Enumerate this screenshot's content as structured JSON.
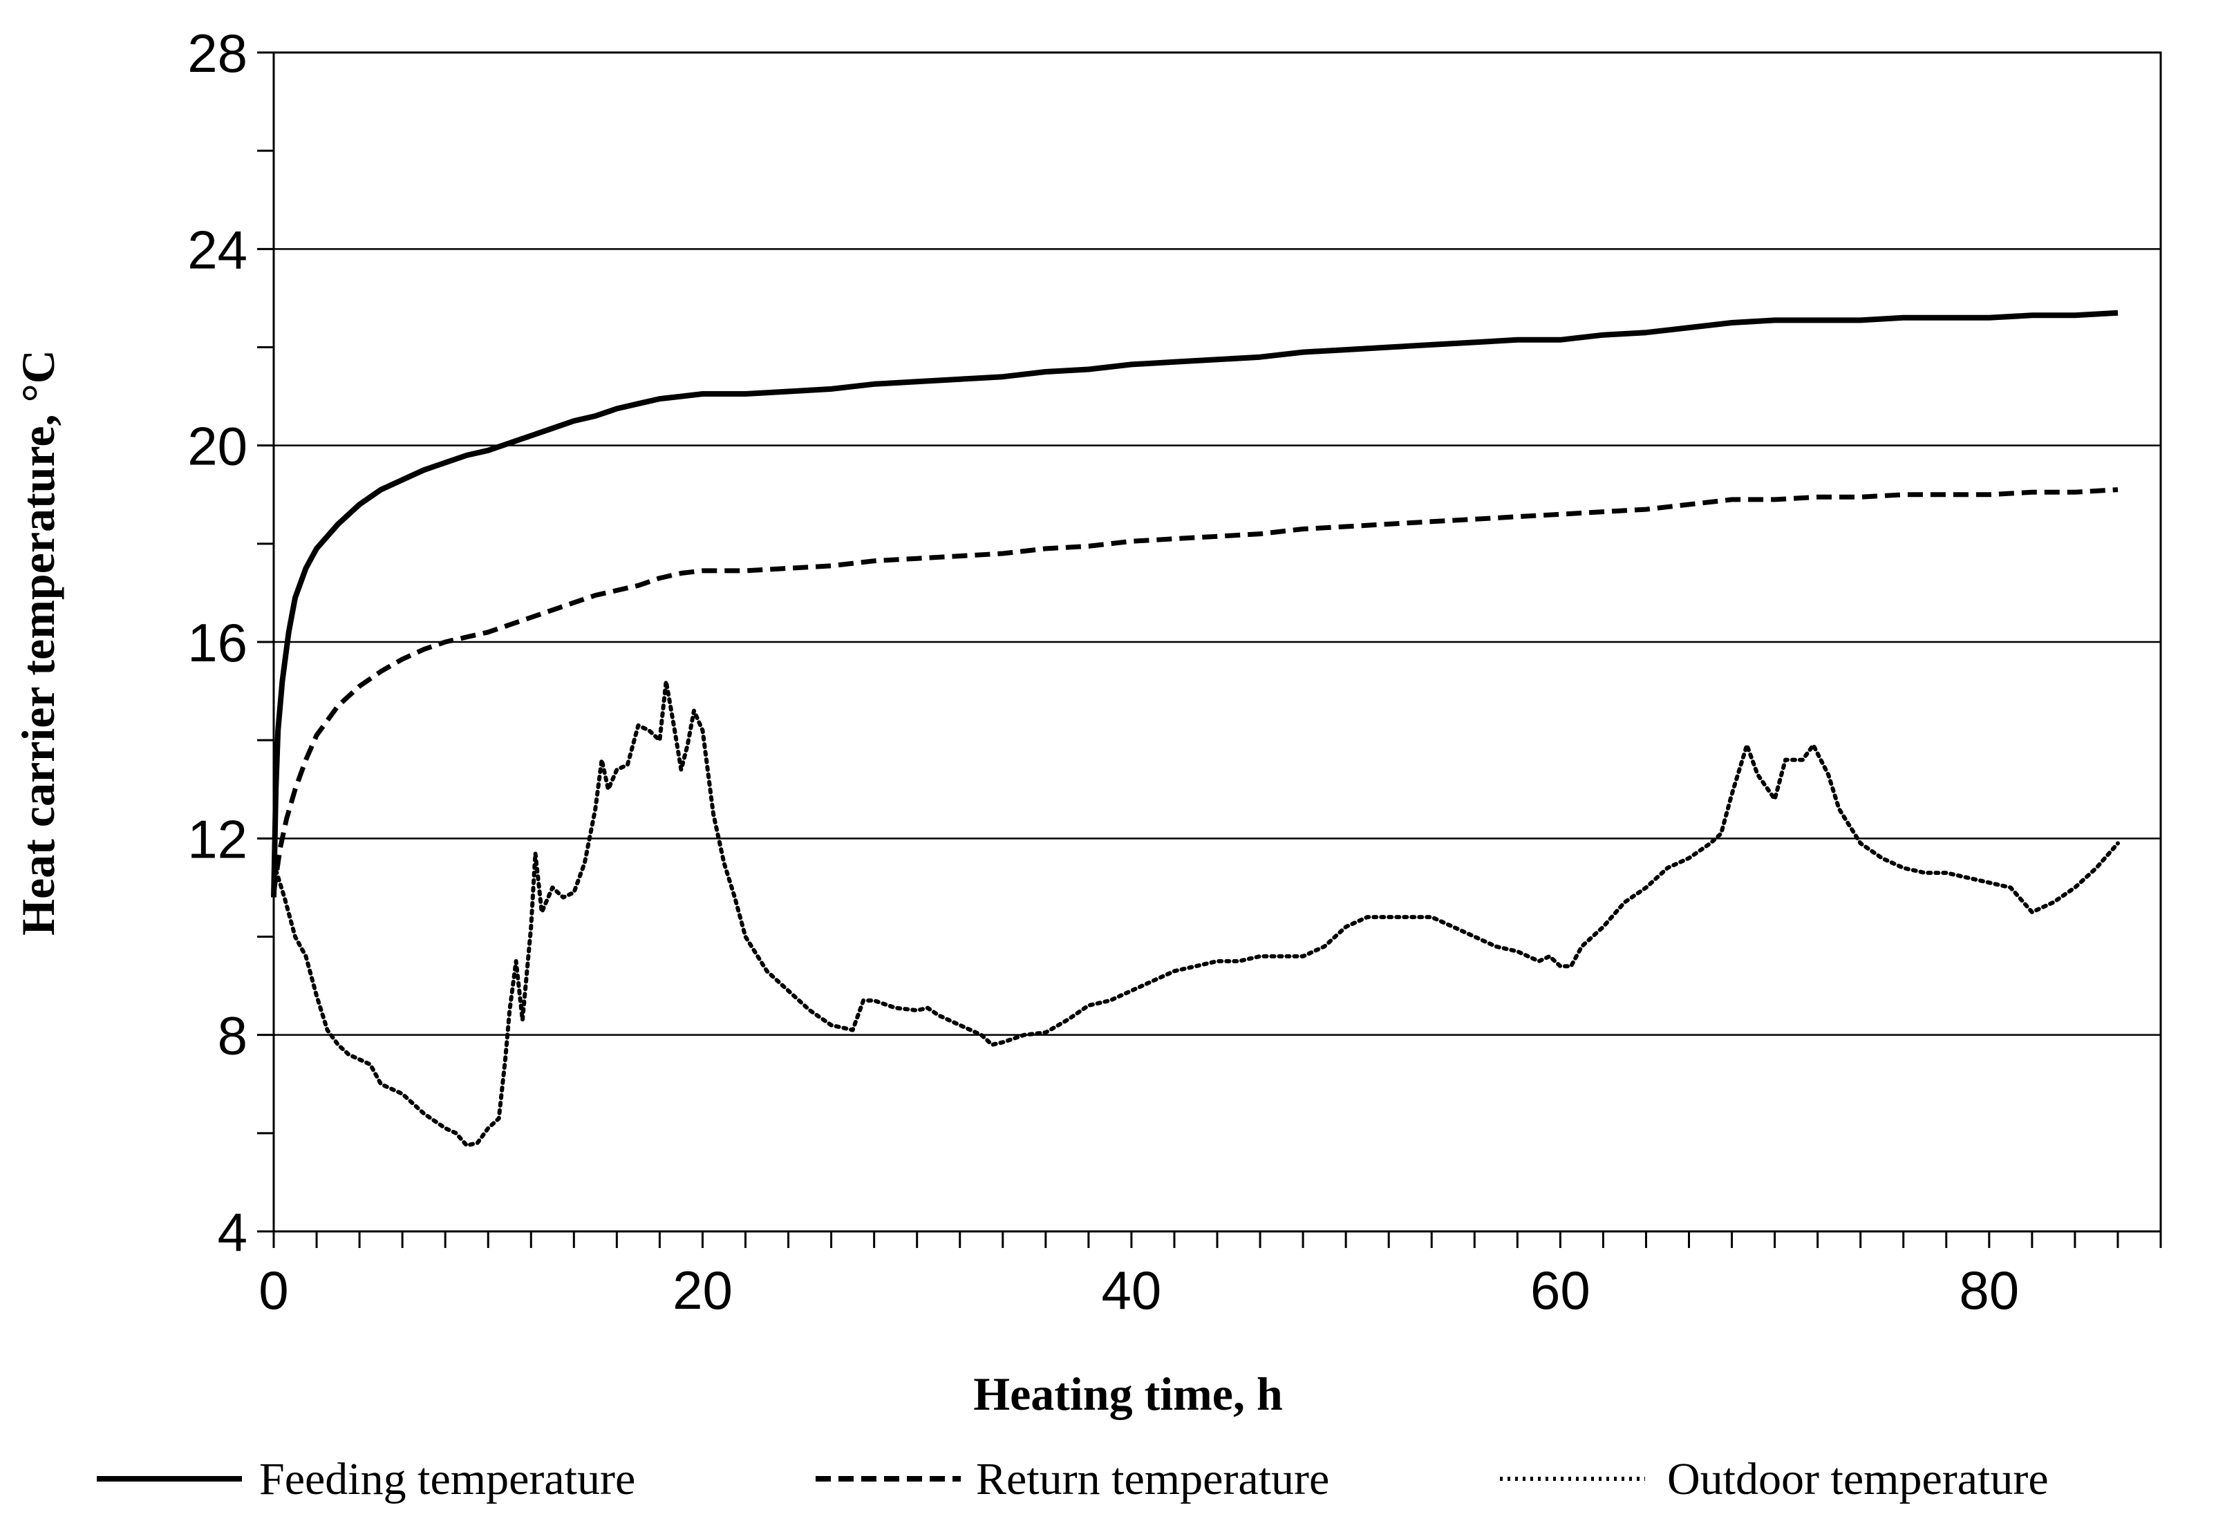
{
  "chart_data": {
    "type": "line",
    "title": "",
    "xlabel": "Heating time, h",
    "ylabel": "Heat carrier temperature, °C",
    "xlim": [
      0,
      88
    ],
    "ylim": [
      4,
      28
    ],
    "x_ticks": [
      0,
      20,
      40,
      60,
      80
    ],
    "y_ticks": [
      4,
      8,
      12,
      16,
      20,
      24,
      28
    ],
    "x_minor_step": 2,
    "y_minor_step": 2,
    "grid": "horizontal at major y ticks",
    "legend_position": "bottom",
    "series": [
      {
        "name": "Feeding temperature",
        "style": "solid",
        "color": "#000000",
        "points": [
          [
            0,
            10.8
          ],
          [
            0.1,
            13.0
          ],
          [
            0.2,
            14.2
          ],
          [
            0.4,
            15.2
          ],
          [
            0.7,
            16.2
          ],
          [
            1,
            16.9
          ],
          [
            1.5,
            17.5
          ],
          [
            2,
            17.9
          ],
          [
            3,
            18.4
          ],
          [
            4,
            18.8
          ],
          [
            5,
            19.1
          ],
          [
            6,
            19.3
          ],
          [
            7,
            19.5
          ],
          [
            8,
            19.65
          ],
          [
            9,
            19.8
          ],
          [
            10,
            19.9
          ],
          [
            11,
            20.05
          ],
          [
            12,
            20.2
          ],
          [
            13,
            20.35
          ],
          [
            14,
            20.5
          ],
          [
            15,
            20.6
          ],
          [
            16,
            20.75
          ],
          [
            17,
            20.85
          ],
          [
            18,
            20.95
          ],
          [
            19,
            21.0
          ],
          [
            20,
            21.05
          ],
          [
            22,
            21.05
          ],
          [
            24,
            21.1
          ],
          [
            26,
            21.15
          ],
          [
            28,
            21.25
          ],
          [
            30,
            21.3
          ],
          [
            32,
            21.35
          ],
          [
            34,
            21.4
          ],
          [
            36,
            21.5
          ],
          [
            38,
            21.55
          ],
          [
            40,
            21.65
          ],
          [
            42,
            21.7
          ],
          [
            44,
            21.75
          ],
          [
            46,
            21.8
          ],
          [
            48,
            21.9
          ],
          [
            50,
            21.95
          ],
          [
            52,
            22.0
          ],
          [
            54,
            22.05
          ],
          [
            56,
            22.1
          ],
          [
            58,
            22.15
          ],
          [
            60,
            22.15
          ],
          [
            62,
            22.25
          ],
          [
            64,
            22.3
          ],
          [
            66,
            22.4
          ],
          [
            68,
            22.5
          ],
          [
            70,
            22.55
          ],
          [
            72,
            22.55
          ],
          [
            74,
            22.55
          ],
          [
            76,
            22.6
          ],
          [
            78,
            22.6
          ],
          [
            80,
            22.6
          ],
          [
            82,
            22.65
          ],
          [
            84,
            22.65
          ],
          [
            86,
            22.7
          ]
        ]
      },
      {
        "name": "Return temperature",
        "style": "dashed",
        "color": "#000000",
        "points": [
          [
            0,
            10.9
          ],
          [
            0.3,
            11.8
          ],
          [
            0.6,
            12.4
          ],
          [
            1,
            13.0
          ],
          [
            1.5,
            13.6
          ],
          [
            2,
            14.1
          ],
          [
            3,
            14.7
          ],
          [
            4,
            15.1
          ],
          [
            5,
            15.4
          ],
          [
            6,
            15.65
          ],
          [
            7,
            15.85
          ],
          [
            8,
            16.0
          ],
          [
            9,
            16.1
          ],
          [
            10,
            16.2
          ],
          [
            11,
            16.35
          ],
          [
            12,
            16.5
          ],
          [
            13,
            16.65
          ],
          [
            14,
            16.8
          ],
          [
            15,
            16.95
          ],
          [
            16,
            17.05
          ],
          [
            17,
            17.15
          ],
          [
            18,
            17.3
          ],
          [
            19,
            17.4
          ],
          [
            20,
            17.45
          ],
          [
            22,
            17.45
          ],
          [
            24,
            17.5
          ],
          [
            26,
            17.55
          ],
          [
            28,
            17.65
          ],
          [
            30,
            17.7
          ],
          [
            32,
            17.75
          ],
          [
            34,
            17.8
          ],
          [
            36,
            17.9
          ],
          [
            38,
            17.95
          ],
          [
            40,
            18.05
          ],
          [
            42,
            18.1
          ],
          [
            44,
            18.15
          ],
          [
            46,
            18.2
          ],
          [
            48,
            18.3
          ],
          [
            50,
            18.35
          ],
          [
            52,
            18.4
          ],
          [
            54,
            18.45
          ],
          [
            56,
            18.5
          ],
          [
            58,
            18.55
          ],
          [
            60,
            18.6
          ],
          [
            62,
            18.65
          ],
          [
            64,
            18.7
          ],
          [
            66,
            18.8
          ],
          [
            68,
            18.9
          ],
          [
            70,
            18.9
          ],
          [
            72,
            18.95
          ],
          [
            74,
            18.95
          ],
          [
            76,
            19.0
          ],
          [
            78,
            19.0
          ],
          [
            80,
            19.0
          ],
          [
            82,
            19.05
          ],
          [
            84,
            19.05
          ],
          [
            86,
            19.1
          ]
        ]
      },
      {
        "name": "Outdoor temperature",
        "style": "dotted",
        "color": "#000000",
        "points": [
          [
            0,
            11.5
          ],
          [
            0.5,
            10.8
          ],
          [
            1,
            10.0
          ],
          [
            1.5,
            9.6
          ],
          [
            2,
            8.8
          ],
          [
            2.5,
            8.1
          ],
          [
            3,
            7.8
          ],
          [
            3.5,
            7.6
          ],
          [
            4,
            7.5
          ],
          [
            4.5,
            7.4
          ],
          [
            5,
            7.0
          ],
          [
            6,
            6.8
          ],
          [
            7,
            6.4
          ],
          [
            8,
            6.1
          ],
          [
            8.5,
            6.0
          ],
          [
            9,
            5.75
          ],
          [
            9.5,
            5.8
          ],
          [
            10,
            6.1
          ],
          [
            10.5,
            6.3
          ],
          [
            10.8,
            7.5
          ],
          [
            11,
            8.5
          ],
          [
            11.3,
            9.5
          ],
          [
            11.6,
            8.3
          ],
          [
            12,
            10.2
          ],
          [
            12.2,
            11.7
          ],
          [
            12.5,
            10.5
          ],
          [
            13,
            11.0
          ],
          [
            13.5,
            10.8
          ],
          [
            14,
            10.9
          ],
          [
            14.5,
            11.5
          ],
          [
            15,
            12.6
          ],
          [
            15.3,
            13.6
          ],
          [
            15.6,
            13.0
          ],
          [
            16,
            13.4
          ],
          [
            16.5,
            13.5
          ],
          [
            17,
            14.3
          ],
          [
            17.5,
            14.2
          ],
          [
            18,
            14.0
          ],
          [
            18.3,
            15.2
          ],
          [
            18.7,
            14.2
          ],
          [
            19,
            13.4
          ],
          [
            19.3,
            13.9
          ],
          [
            19.6,
            14.6
          ],
          [
            20,
            14.2
          ],
          [
            20.5,
            12.5
          ],
          [
            21,
            11.5
          ],
          [
            21.5,
            10.8
          ],
          [
            22,
            10.0
          ],
          [
            23,
            9.3
          ],
          [
            24,
            8.9
          ],
          [
            25,
            8.5
          ],
          [
            26,
            8.2
          ],
          [
            27,
            8.1
          ],
          [
            27.5,
            8.7
          ],
          [
            28,
            8.7
          ],
          [
            29,
            8.55
          ],
          [
            30,
            8.5
          ],
          [
            30.5,
            8.55
          ],
          [
            31,
            8.4
          ],
          [
            32,
            8.2
          ],
          [
            33,
            8.0
          ],
          [
            33.5,
            7.8
          ],
          [
            34,
            7.85
          ],
          [
            35,
            8.0
          ],
          [
            36,
            8.05
          ],
          [
            37,
            8.3
          ],
          [
            38,
            8.6
          ],
          [
            39,
            8.7
          ],
          [
            40,
            8.9
          ],
          [
            41,
            9.1
          ],
          [
            42,
            9.3
          ],
          [
            43,
            9.4
          ],
          [
            44,
            9.5
          ],
          [
            45,
            9.5
          ],
          [
            46,
            9.6
          ],
          [
            47,
            9.6
          ],
          [
            48,
            9.6
          ],
          [
            49,
            9.8
          ],
          [
            50,
            10.2
          ],
          [
            51,
            10.4
          ],
          [
            52,
            10.4
          ],
          [
            53,
            10.4
          ],
          [
            54,
            10.4
          ],
          [
            55,
            10.2
          ],
          [
            56,
            10.0
          ],
          [
            57,
            9.8
          ],
          [
            58,
            9.7
          ],
          [
            59,
            9.5
          ],
          [
            59.5,
            9.6
          ],
          [
            60,
            9.4
          ],
          [
            60.5,
            9.4
          ],
          [
            61,
            9.8
          ],
          [
            62,
            10.2
          ],
          [
            63,
            10.7
          ],
          [
            64,
            11.0
          ],
          [
            65,
            11.4
          ],
          [
            66,
            11.6
          ],
          [
            67,
            11.9
          ],
          [
            67.5,
            12.1
          ],
          [
            68,
            12.9
          ],
          [
            68.7,
            13.9
          ],
          [
            69.2,
            13.3
          ],
          [
            70,
            12.8
          ],
          [
            70.5,
            13.6
          ],
          [
            71.3,
            13.6
          ],
          [
            71.8,
            13.9
          ],
          [
            72.5,
            13.3
          ],
          [
            73,
            12.6
          ],
          [
            74,
            11.9
          ],
          [
            75,
            11.6
          ],
          [
            76,
            11.4
          ],
          [
            77,
            11.3
          ],
          [
            78,
            11.3
          ],
          [
            79,
            11.2
          ],
          [
            80,
            11.1
          ],
          [
            81,
            11.0
          ],
          [
            82,
            10.5
          ],
          [
            83,
            10.7
          ],
          [
            84,
            11.0
          ],
          [
            85,
            11.4
          ],
          [
            86,
            11.9
          ]
        ]
      }
    ]
  }
}
